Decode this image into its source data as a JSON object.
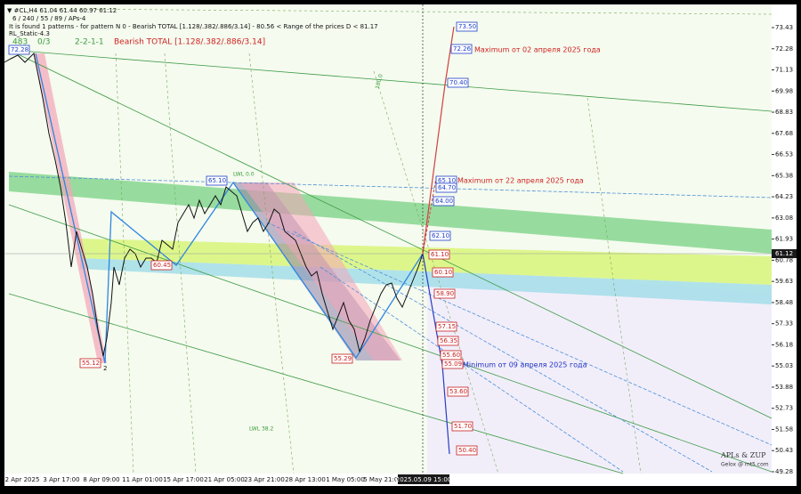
{
  "header": {
    "line1": "▼ #CL,H4  61.04 61.44 60.97 61.12",
    "line2": "6 / 240 / 55 / 89 / APs-4",
    "line3": "It is found 1 patterns  -  for pattern N 0 - Bearish TOTAL [1.128/.382/.886/3.14] - 80.56 < Range of the prices D < 81.17",
    "line4": "RL_Static-4.3",
    "count": "483",
    "ratio": "0/3",
    "code": "2-2-1-1",
    "pattern": "Bearish TOTAL [1.128/.382/.886/3.14]"
  },
  "price_axis": {
    "ticks": [
      "73.43",
      "72.28",
      "71.13",
      "69.98",
      "68.83",
      "67.68",
      "66.53",
      "65.38",
      "64.23",
      "63.08",
      "61.93",
      "60.78",
      "59.63",
      "58.48",
      "57.33",
      "56.18",
      "55.03",
      "53.88",
      "52.73",
      "51.58",
      "50.43",
      "49.28"
    ],
    "current": "61.12"
  },
  "time_axis": {
    "labels": [
      "2 Apr 2025",
      "3 Apr 17:00",
      "8 Apr 09:00",
      "11 Apr 01:00",
      "15 Apr 17:00",
      "21 Apr 05:00",
      "23 Apr 21:00",
      "28 Apr 13:00",
      "1 May 05:00",
      "5 May 21:00"
    ],
    "current": "2025.05.09 15:00"
  },
  "price_boxes": [
    {
      "label": "72.28",
      "color": "#1e40c8"
    },
    {
      "label": "65.10",
      "color": "#1e40c8"
    },
    {
      "label": "60.45",
      "color": "#c81e1e"
    },
    {
      "label": "55.12",
      "color": "#c81e1e"
    },
    {
      "label": "55.29",
      "color": "#c81e1e"
    },
    {
      "label": "73.50",
      "color": "#1e40c8"
    },
    {
      "label": "72.26",
      "color": "#1e40c8"
    },
    {
      "label": "70.40",
      "color": "#1e40c8"
    },
    {
      "label": "65.10",
      "color": "#1e40c8"
    },
    {
      "label": "64.70",
      "color": "#1e40c8"
    },
    {
      "label": "64.00",
      "color": "#1e40c8"
    },
    {
      "label": "62.10",
      "color": "#1e40c8"
    },
    {
      "label": "61.10",
      "color": "#c81e1e"
    },
    {
      "label": "60.10",
      "color": "#c81e1e"
    },
    {
      "label": "58.90",
      "color": "#c81e1e"
    },
    {
      "label": "57.15",
      "color": "#c81e1e"
    },
    {
      "label": "56.35",
      "color": "#c81e1e"
    },
    {
      "label": "55.60",
      "color": "#c81e1e"
    },
    {
      "label": "55.09",
      "color": "#c81e1e"
    },
    {
      "label": "53.60",
      "color": "#c81e1e"
    },
    {
      "label": "51.70",
      "color": "#c81e1e"
    },
    {
      "label": "50.40",
      "color": "#c81e1e"
    }
  ],
  "annotations": {
    "max_0402": "Maximum от 02 апреля 2025 года",
    "max_0422": "Maximum от 22 апреля 2025 года",
    "min_0409": "Minimum от 09 апреля 2025 года",
    "point": "2",
    "lwl0": "LWL 0.0",
    "lwl382": "LWL 38.2",
    "fib100": "100.0"
  },
  "watermark": {
    "title": "APLs & ZUP",
    "sub": "Gelox @ mt5.com"
  }
}
